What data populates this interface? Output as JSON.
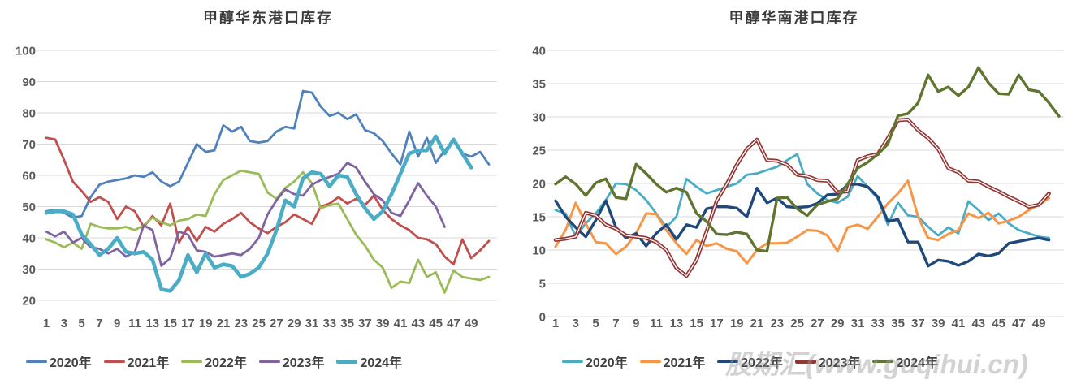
{
  "watermark": "股期汇(www.guqihui.cn)",
  "palette": {
    "grid": "#d9d9d9",
    "axis_text": "#595959",
    "title_text": "#3b3b3b",
    "legend_text": "#404040",
    "background": "#ffffff"
  },
  "chart_data": [
    {
      "type": "line",
      "title": "甲醇华东港口库存",
      "xlabel": "",
      "ylabel": "",
      "ylim": [
        20,
        100
      ],
      "ytick_step": 10,
      "grid": true,
      "legend_position": "bottom",
      "x_ticks": [
        "1",
        "3",
        "5",
        "7",
        "9",
        "11",
        "13",
        "15",
        "17",
        "19",
        "21",
        "23",
        "25",
        "27",
        "29",
        "31",
        "33",
        "35",
        "37",
        "39",
        "41",
        "43",
        "45",
        "47",
        "49"
      ],
      "x_unit": "week",
      "series": [
        {
          "name": "2020年",
          "color": "#4F81BD",
          "width": 2.8,
          "values": [
            48.5,
            49,
            48,
            46.5,
            47,
            53,
            57,
            58,
            58.5,
            59,
            60,
            59.5,
            61,
            58,
            56.5,
            58,
            64,
            70,
            67.5,
            68,
            76,
            74,
            75.5,
            71,
            70.5,
            71,
            74,
            75.5,
            75,
            87,
            86.5,
            82,
            79,
            80,
            78,
            79.5,
            74.5,
            73.5,
            71,
            67,
            63.5,
            74,
            66,
            72,
            64,
            68,
            71,
            67,
            66,
            67.5,
            63.5
          ]
        },
        {
          "name": "2021年",
          "color": "#C0504D",
          "width": 2.8,
          "values": [
            72,
            71.5,
            65,
            58,
            55,
            51.5,
            53,
            51.5,
            46,
            50,
            48.5,
            43.5,
            47,
            44,
            51,
            38.5,
            43.5,
            39,
            43.5,
            42,
            44.5,
            46,
            48,
            45,
            43,
            41.5,
            43.5,
            45,
            47.5,
            46,
            44.5,
            50,
            51,
            53,
            51,
            52.5,
            50.5,
            53.5,
            49,
            46,
            44,
            42.5,
            40,
            39.5,
            38,
            34,
            31.5,
            39.5,
            33.5,
            36,
            39
          ]
        },
        {
          "name": "2022年",
          "color": "#9BBB59",
          "width": 2.8,
          "values": [
            39.5,
            38.5,
            37,
            38.5,
            36.5,
            44.5,
            43.5,
            43,
            43,
            43.5,
            42.5,
            44,
            46.5,
            45,
            44,
            45.5,
            46,
            47.5,
            47,
            54,
            58.5,
            60,
            61.5,
            61,
            60.5,
            54.5,
            52.5,
            56,
            58,
            61,
            57.5,
            49.5,
            50.5,
            51,
            46,
            41,
            37.5,
            33,
            30.5,
            24,
            26,
            25.5,
            33,
            27.5,
            29,
            22.5,
            29.5,
            27.5,
            27,
            26.5,
            27.5
          ]
        },
        {
          "name": "2023年",
          "color": "#8064A2",
          "width": 2.8,
          "values": [
            42,
            40.5,
            42,
            38.5,
            40,
            37,
            36.5,
            35,
            36.5,
            34,
            35.5,
            44,
            42.5,
            31,
            33.5,
            42,
            41,
            36,
            35.5,
            34,
            34.5,
            35,
            34.5,
            36.5,
            40,
            47.5,
            52,
            55.5,
            54,
            53.5,
            57,
            58.5,
            59.5,
            60.5,
            64,
            62.5,
            58,
            54,
            52,
            48,
            47,
            52,
            57.5,
            53.5,
            50,
            43.5
          ]
        },
        {
          "name": "2024年",
          "color": "#4BACC6",
          "width": 4.6,
          "values": [
            48,
            48.5,
            48.5,
            47.5,
            41,
            38,
            34.5,
            36.5,
            40,
            35.5,
            35,
            35.5,
            33,
            23.5,
            23,
            26.5,
            34.5,
            29,
            35,
            30.5,
            31.5,
            31,
            27.5,
            28.5,
            30.5,
            35,
            42.5,
            52,
            50,
            59,
            61,
            60.5,
            56.5,
            60,
            59.5,
            54,
            49.5,
            46,
            48.5,
            54,
            60.5,
            67,
            68,
            68,
            72.5,
            67,
            71.5,
            67,
            62.5
          ]
        }
      ]
    },
    {
      "type": "line",
      "title": "甲醇华南港口库存",
      "xlabel": "",
      "ylabel": "",
      "ylim": [
        0,
        40
      ],
      "ytick_step": 5,
      "grid": true,
      "legend_position": "bottom",
      "x_ticks": [
        "1",
        "3",
        "5",
        "7",
        "9",
        "11",
        "13",
        "15",
        "17",
        "19",
        "21",
        "23",
        "25",
        "27",
        "29",
        "31",
        "33",
        "35",
        "37",
        "39",
        "41",
        "43",
        "45",
        "47",
        "49"
      ],
      "x_unit": "week",
      "series": [
        {
          "name": "2020年",
          "color": "#4BACC6",
          "width": 2.8,
          "values": [
            16,
            15.5,
            12,
            14,
            15.5,
            17.5,
            20,
            19.9,
            19,
            17.5,
            15.5,
            13.4,
            15,
            20.7,
            19.5,
            18.5,
            19,
            19.5,
            20,
            21.3,
            21.5,
            22,
            22.5,
            23.5,
            24.4,
            19.9,
            18.5,
            17.5,
            17.1,
            18,
            21.1,
            19.5,
            17.7,
            13.8,
            17.1,
            15.2,
            15,
            13.5,
            12.2,
            13.4,
            12.5,
            17.3,
            16,
            14.5,
            15.5,
            14,
            13,
            12.5,
            12,
            11.8
          ]
        },
        {
          "name": "2021年",
          "color": "#F79646",
          "width": 3,
          "values": [
            10.5,
            13,
            17.1,
            14,
            11.2,
            11,
            9.4,
            10.5,
            12.5,
            15.5,
            15.4,
            13,
            11,
            9.4,
            11.5,
            10.6,
            11,
            10.2,
            9.8,
            8,
            10,
            11,
            11,
            11.1,
            12,
            13,
            12.9,
            12.2,
            9.8,
            13.4,
            13.8,
            13.2,
            15,
            17,
            18.5,
            20.4,
            15,
            11.8,
            11.5,
            12.4,
            13,
            15.5,
            14.8,
            15.6,
            14,
            14.4,
            15,
            16,
            16.8,
            17.8
          ]
        },
        {
          "name": "2022年",
          "color": "#1F497D",
          "width": 3.4,
          "values": [
            17.4,
            15,
            13.4,
            12,
            14.5,
            17.4,
            13.4,
            11.8,
            12.5,
            10.6,
            12.5,
            13.8,
            11.6,
            13.8,
            13.4,
            16.2,
            16.5,
            16.5,
            16.3,
            15,
            19.3,
            17.1,
            17.8,
            16.5,
            16.4,
            16.5,
            17,
            18.3,
            18.4,
            19.8,
            19.9,
            19.5,
            18,
            14.3,
            14.6,
            11.2,
            11.2,
            7.6,
            8.5,
            8.3,
            7.7,
            8.3,
            9.4,
            9.1,
            9.5,
            11,
            11.3,
            11.6,
            11.8,
            11.5
          ]
        },
        {
          "name": "2023年",
          "color": "#943634",
          "width": 4.6,
          "style": "double",
          "values": [
            11.5,
            11.7,
            12,
            15.6,
            15.2,
            13.8,
            13.2,
            12.2,
            12,
            11.8,
            11.2,
            10,
            7.3,
            6.1,
            8.5,
            12.8,
            17.4,
            19.9,
            22.8,
            25.2,
            26.6,
            23.5,
            23.4,
            22.8,
            21.3,
            21.1,
            20.5,
            20.4,
            18.7,
            18.8,
            23.5,
            24.1,
            24.4,
            26.8,
            29.5,
            29.6,
            28,
            26.8,
            25.2,
            22.3,
            21.7,
            20.4,
            20.3,
            19.5,
            18.8,
            18,
            17.3,
            16.5,
            16.8,
            18.5
          ]
        },
        {
          "name": "2024年",
          "color": "#5F7530",
          "width": 3.4,
          "values": [
            19.9,
            21,
            19.9,
            18.2,
            20.1,
            20.7,
            17.9,
            17.7,
            22.9,
            21.5,
            19.9,
            18.7,
            19.3,
            18.7,
            15.5,
            14.3,
            12.4,
            12.3,
            12.7,
            12.4,
            10,
            9.8,
            17.8,
            17.9,
            16.2,
            15.2,
            16.8,
            17.3,
            17.7,
            19.9,
            22.3,
            23.2,
            24.4,
            25.9,
            30.2,
            30.5,
            32.1,
            36.3,
            33.8,
            34.5,
            33.2,
            34.5,
            37.4,
            35.1,
            33.5,
            33.4,
            36.3,
            34.1,
            33.8,
            32.1,
            30.1
          ]
        }
      ]
    }
  ]
}
